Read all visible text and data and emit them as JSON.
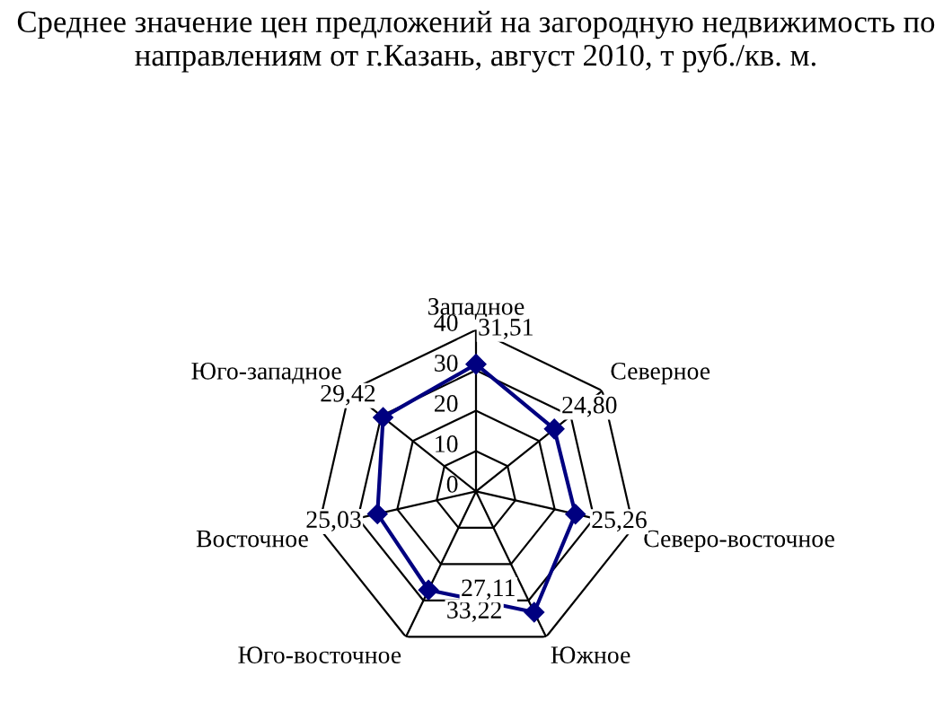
{
  "chart_data": {
    "type": "radar",
    "title": "Среднее значение цен предложений на загородную недвижимость по направлениям от г.Казань, август 2010, т руб./кв. м.",
    "categories": [
      "Западное",
      "Северное",
      "Северо-восточное",
      "Южное",
      "Юго-восточное",
      "Восточное",
      "Юго-западное"
    ],
    "series": [
      {
        "color": "#000080",
        "values": [
          31.51,
          24.8,
          25.26,
          33.22,
          27.11,
          25.03,
          29.42
        ],
        "value_labels": [
          "31,51",
          "24,80",
          "25,26",
          "33,22",
          "27,11",
          "25,03",
          "29,42"
        ]
      }
    ],
    "ylim": [
      0,
      40
    ],
    "yticks": [
      0,
      10,
      20,
      30,
      40
    ],
    "grid": true,
    "marker": "diamond",
    "line_style": "solid",
    "legend": false
  }
}
